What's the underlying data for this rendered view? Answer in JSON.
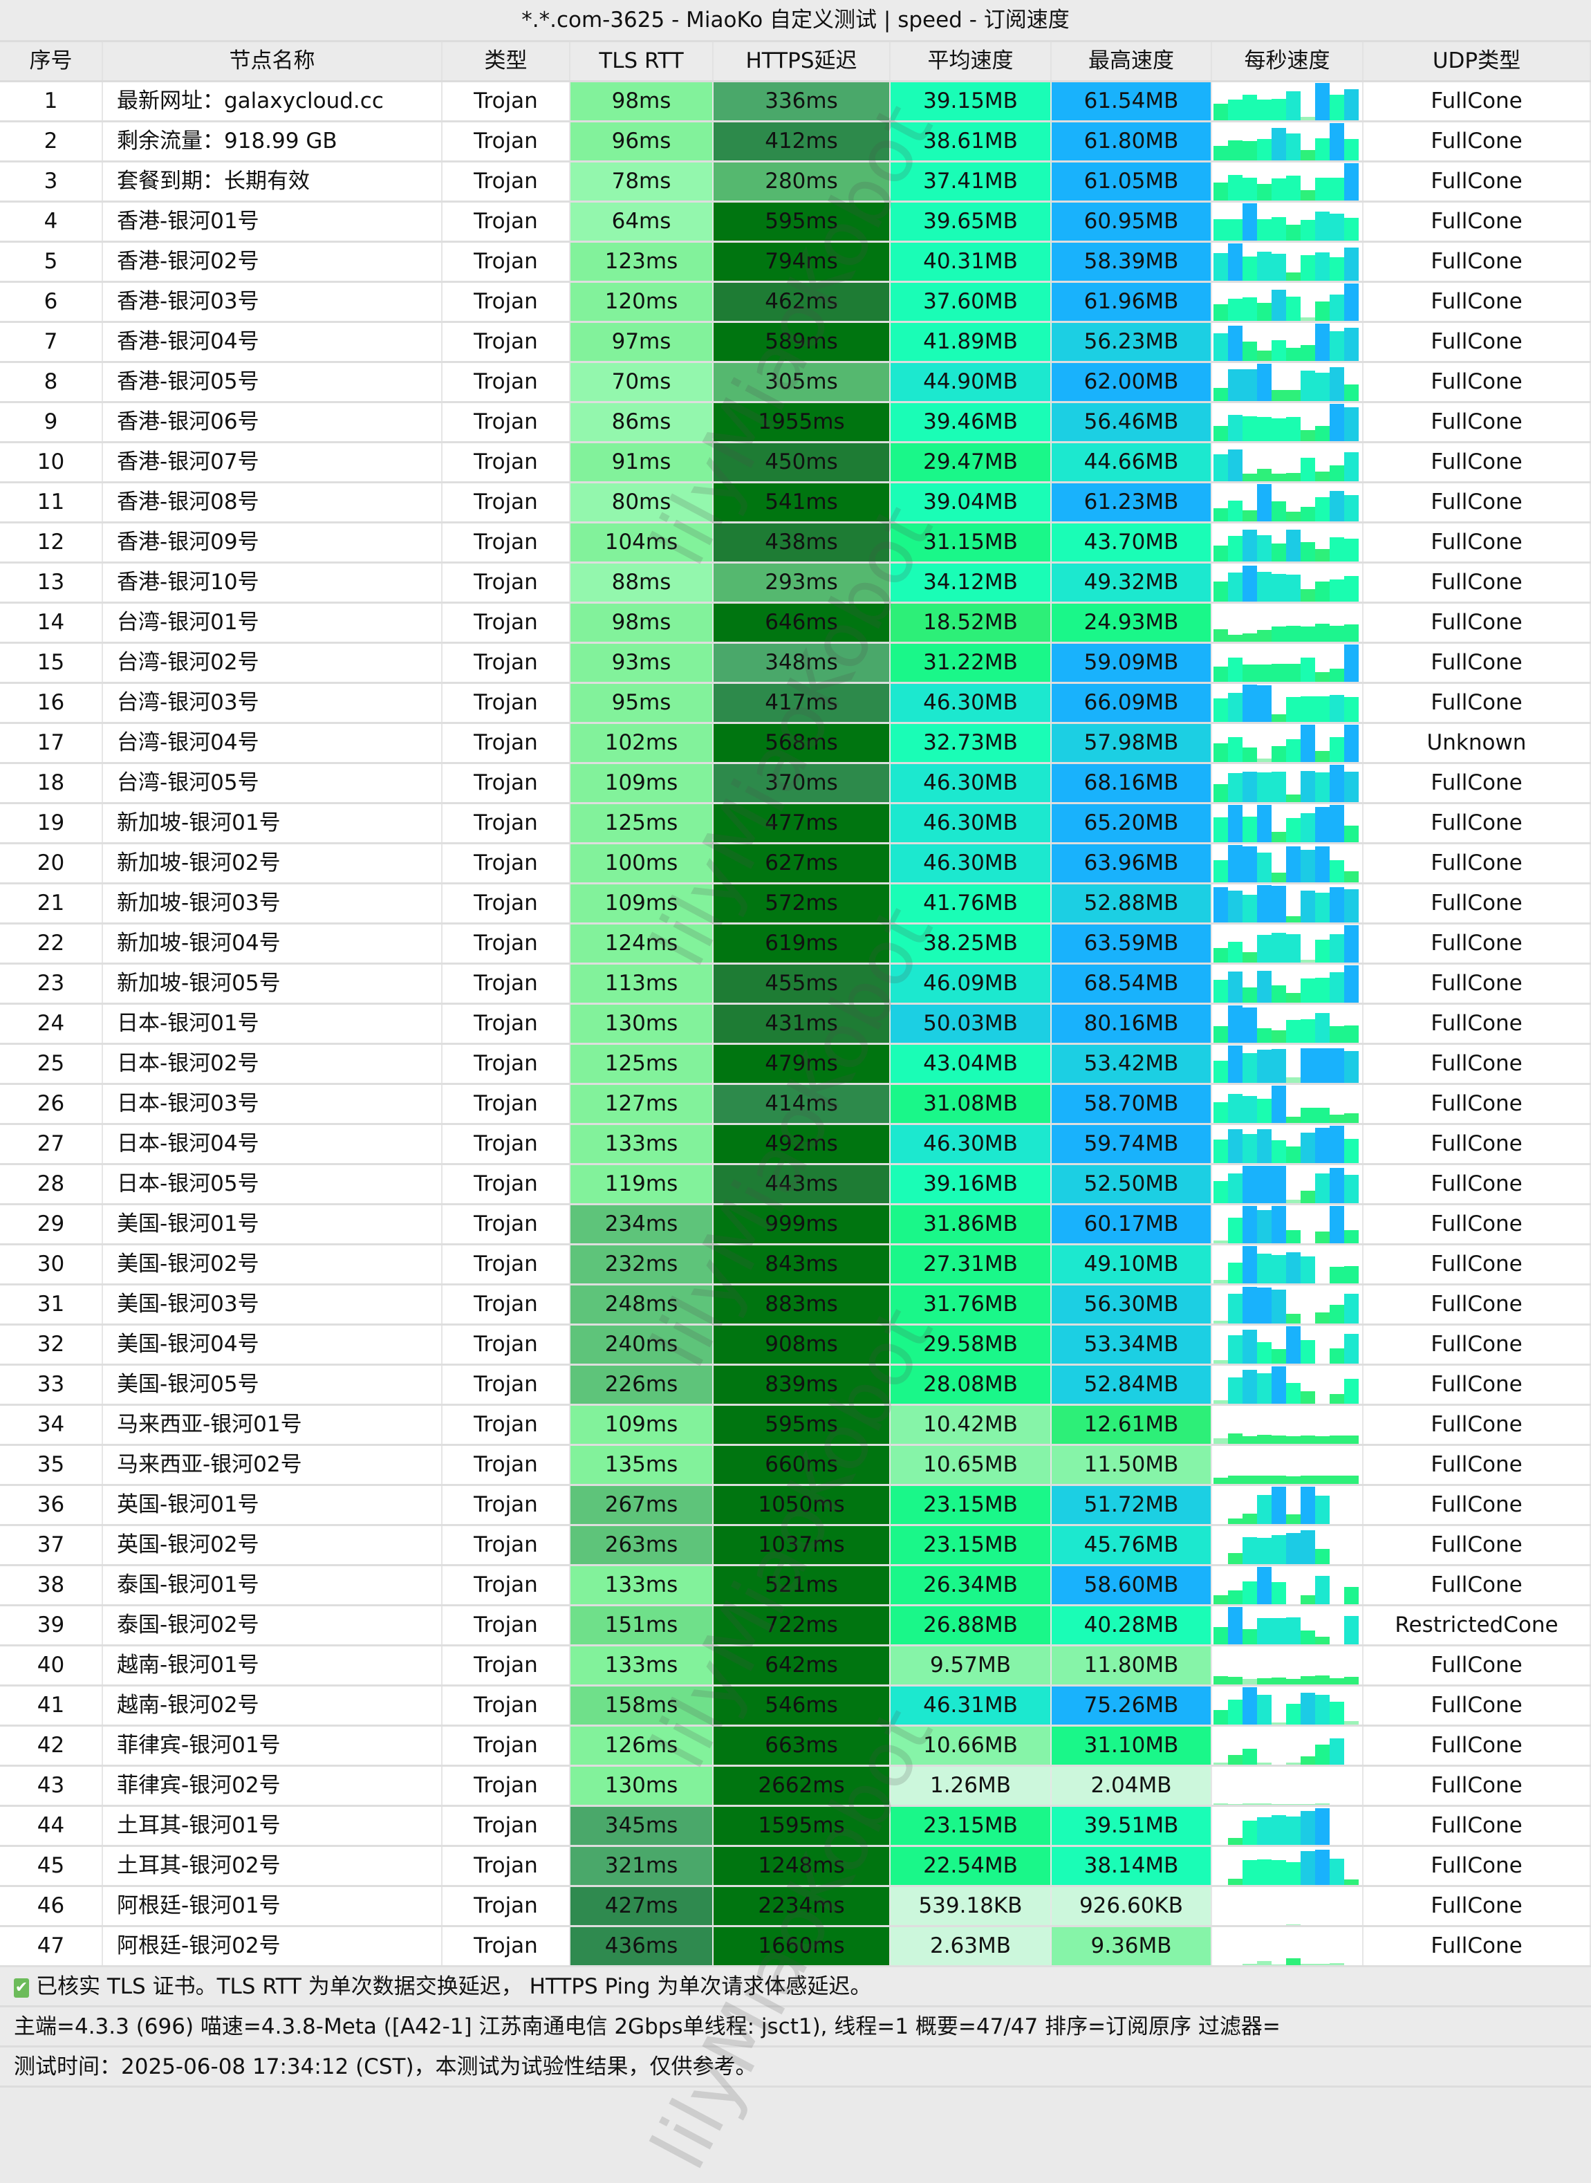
{
  "title": "*.*.com-3625 - MiaoKo 自定义测试 | speed - 订阅速度",
  "columns": [
    "序号",
    "节点名称",
    "类型",
    "TLS RTT",
    "HTTPS延迟",
    "平均速度",
    "最高速度",
    "每秒速度",
    "UDP类型"
  ],
  "rows": [
    {
      "idx": "1",
      "name": "最新网址：galaxycloud.cc",
      "type": "Trojan",
      "tls": "98ms",
      "https": "336ms",
      "avg": "39.15MB",
      "max": "61.54MB",
      "udp": "FullCone",
      "spark": [
        45,
        55,
        69,
        56,
        58,
        77,
        10,
        100,
        69,
        83
      ]
    },
    {
      "idx": "2",
      "name": "剩余流量：918.99 GB",
      "type": "Trojan",
      "tls": "96ms",
      "https": "412ms",
      "avg": "38.61MB",
      "max": "61.80MB",
      "udp": "FullCone",
      "spark": [
        38,
        54,
        51,
        58,
        87,
        73,
        27,
        60,
        100,
        58
      ]
    },
    {
      "idx": "3",
      "name": "套餐到期：长期有效",
      "type": "Trojan",
      "tls": "78ms",
      "https": "280ms",
      "avg": "37.41MB",
      "max": "61.05MB",
      "udp": "FullCone",
      "spark": [
        48,
        69,
        62,
        44,
        60,
        67,
        28,
        62,
        62,
        100
      ]
    },
    {
      "idx": "4",
      "name": "香港-银河01号",
      "type": "Trojan",
      "tls": "64ms",
      "https": "595ms",
      "avg": "39.65MB",
      "max": "60.95MB",
      "udp": "FullCone",
      "spark": [
        58,
        57,
        100,
        57,
        63,
        42,
        56,
        78,
        73,
        61
      ]
    },
    {
      "idx": "5",
      "name": "香港-银河02号",
      "type": "Trojan",
      "tls": "123ms",
      "https": "794ms",
      "avg": "40.31MB",
      "max": "58.39MB",
      "udp": "FullCone",
      "spark": [
        74,
        100,
        64,
        77,
        73,
        22,
        68,
        75,
        63,
        88
      ]
    },
    {
      "idx": "6",
      "name": "香港-银河03号",
      "type": "Trojan",
      "tls": "120ms",
      "https": "462ms",
      "avg": "37.60MB",
      "max": "61.96MB",
      "udp": "FullCone",
      "spark": [
        45,
        59,
        63,
        49,
        84,
        65,
        10,
        51,
        70,
        100
      ]
    },
    {
      "idx": "7",
      "name": "香港-银河04号",
      "type": "Trojan",
      "tls": "97ms",
      "https": "589ms",
      "avg": "41.89MB",
      "max": "56.23MB",
      "udp": "FullCone",
      "spark": [
        74,
        95,
        51,
        27,
        55,
        35,
        43,
        100,
        79,
        89
      ]
    },
    {
      "idx": "8",
      "name": "香港-银河05号",
      "type": "Trojan",
      "tls": "70ms",
      "https": "305ms",
      "avg": "44.90MB",
      "max": "62.00MB",
      "udp": "FullCone",
      "spark": [
        36,
        86,
        86,
        100,
        30,
        30,
        81,
        76,
        90,
        45
      ]
    },
    {
      "idx": "9",
      "name": "香港-银河06号",
      "type": "Trojan",
      "tls": "86ms",
      "https": "1955ms",
      "avg": "39.46MB",
      "max": "56.46MB",
      "udp": "FullCone",
      "spark": [
        40,
        71,
        66,
        65,
        62,
        65,
        30,
        41,
        100,
        91
      ]
    },
    {
      "idx": "10",
      "name": "香港-银河07号",
      "type": "Trojan",
      "tls": "91ms",
      "https": "450ms",
      "avg": "29.47MB",
      "max": "44.66MB",
      "udp": "FullCone",
      "spark": [
        73,
        86,
        20,
        34,
        20,
        22,
        63,
        26,
        42,
        78
      ]
    },
    {
      "idx": "11",
      "name": "香港-银河08号",
      "type": "Trojan",
      "tls": "80ms",
      "https": "541ms",
      "avg": "39.04MB",
      "max": "61.23MB",
      "udp": "FullCone",
      "spark": [
        36,
        56,
        30,
        100,
        53,
        26,
        38,
        64,
        82,
        71
      ]
    },
    {
      "idx": "12",
      "name": "香港-银河09号",
      "type": "Trojan",
      "tls": "104ms",
      "https": "438ms",
      "avg": "31.15MB",
      "max": "43.70MB",
      "udp": "FullCone",
      "spark": [
        43,
        68,
        86,
        71,
        48,
        86,
        51,
        34,
        64,
        61
      ]
    },
    {
      "idx": "13",
      "name": "香港-银河10号",
      "type": "Trojan",
      "tls": "88ms",
      "https": "293ms",
      "avg": "34.12MB",
      "max": "49.32MB",
      "udp": "FullCone",
      "spark": [
        53,
        78,
        97,
        79,
        74,
        73,
        34,
        53,
        59,
        69
      ]
    },
    {
      "idx": "14",
      "name": "台湾-银河01号",
      "type": "Trojan",
      "tls": "98ms",
      "https": "646ms",
      "avg": "18.52MB",
      "max": "24.93MB",
      "udp": "FullCone",
      "spark": [
        33,
        18,
        22,
        32,
        40,
        42,
        41,
        48,
        42,
        47
      ]
    },
    {
      "idx": "15",
      "name": "台湾-银河02号",
      "type": "Trojan",
      "tls": "93ms",
      "https": "348ms",
      "avg": "31.22MB",
      "max": "59.09MB",
      "udp": "FullCone",
      "spark": [
        40,
        65,
        47,
        47,
        48,
        49,
        65,
        25,
        35,
        100
      ]
    },
    {
      "idx": "16",
      "name": "台湾-银河03号",
      "type": "Trojan",
      "tls": "95ms",
      "https": "417ms",
      "avg": "46.30MB",
      "max": "66.09MB",
      "udp": "FullCone",
      "spark": [
        63,
        77,
        100,
        98,
        20,
        66,
        69,
        69,
        73,
        66
      ]
    },
    {
      "idx": "17",
      "name": "台湾-银河04号",
      "type": "Trojan",
      "tls": "102ms",
      "healthy": "",
      "https": "568ms",
      "avg": "32.73MB",
      "max": "57.98MB",
      "udp": "Unknown",
      "spark": [
        50,
        66,
        38,
        10,
        42,
        61,
        100,
        30,
        66,
        100
      ]
    },
    {
      "idx": "18",
      "name": "台湾-银河05号",
      "type": "Trojan",
      "tls": "109ms",
      "https": "370ms",
      "avg": "46.30MB",
      "max": "68.16MB",
      "udp": "FullCone",
      "spark": [
        49,
        78,
        82,
        80,
        81,
        20,
        84,
        79,
        100,
        82
      ]
    },
    {
      "idx": "19",
      "name": "新加坡-银河01号",
      "type": "Trojan",
      "tls": "125ms",
      "https": "477ms",
      "avg": "46.30MB",
      "max": "65.20MB",
      "udp": "FullCone",
      "spark": [
        67,
        100,
        68,
        100,
        27,
        65,
        78,
        95,
        100,
        45
      ]
    },
    {
      "idx": "20",
      "name": "新加坡-银河02号",
      "type": "Trojan",
      "tls": "100ms",
      "https": "627ms",
      "avg": "46.30MB",
      "max": "63.96MB",
      "udp": "FullCone",
      "spark": [
        60,
        100,
        96,
        79,
        26,
        96,
        87,
        96,
        60,
        30
      ]
    },
    {
      "idx": "21",
      "name": "新加坡-银河03号",
      "type": "Trojan",
      "tls": "109ms",
      "https": "572ms",
      "avg": "41.76MB",
      "max": "52.88MB",
      "udp": "FullCone",
      "spark": [
        95,
        86,
        74,
        100,
        98,
        16,
        85,
        79,
        95,
        89
      ]
    },
    {
      "idx": "22",
      "name": "新加坡-银河04号",
      "type": "Trojan",
      "tls": "124ms",
      "https": "619ms",
      "avg": "38.25MB",
      "max": "63.59MB",
      "udp": "FullCone",
      "spark": [
        38,
        56,
        27,
        74,
        79,
        75,
        7,
        61,
        75,
        100
      ]
    },
    {
      "idx": "23",
      "name": "新加坡-银河05号",
      "type": "Trojan",
      "tls": "113ms",
      "https": "455ms",
      "avg": "46.09MB",
      "max": "68.54MB",
      "udp": "FullCone",
      "spark": [
        61,
        84,
        41,
        86,
        46,
        26,
        64,
        67,
        81,
        100
      ]
    },
    {
      "idx": "24",
      "name": "日本-银河01号",
      "type": "Trojan",
      "tls": "130ms",
      "https": "431ms",
      "avg": "50.03MB",
      "max": "80.16MB",
      "udp": "FullCone",
      "spark": [
        45,
        100,
        95,
        38,
        33,
        61,
        63,
        79,
        44,
        46
      ]
    },
    {
      "idx": "25",
      "name": "日本-银河02号",
      "type": "Trojan",
      "tls": "125ms",
      "https": "479ms",
      "avg": "43.04MB",
      "max": "53.42MB",
      "udp": "FullCone",
      "spark": [
        59,
        100,
        80,
        89,
        90,
        14,
        92,
        92,
        92,
        86
      ]
    },
    {
      "idx": "26",
      "name": "日本-银河03号",
      "type": "Trojan",
      "tls": "127ms",
      "https": "414ms",
      "avg": "31.08MB",
      "max": "58.70MB",
      "udp": "FullCone",
      "spark": [
        55,
        77,
        72,
        65,
        100,
        17,
        41,
        41,
        23,
        25
      ]
    },
    {
      "idx": "27",
      "name": "日本-银河04号",
      "type": "Trojan",
      "tls": "133ms",
      "https": "492ms",
      "avg": "46.30MB",
      "max": "59.74MB",
      "udp": "FullCone",
      "spark": [
        63,
        90,
        78,
        90,
        62,
        44,
        82,
        95,
        100,
        64
      ]
    },
    {
      "idx": "28",
      "name": "日本-银河05号",
      "type": "Trojan",
      "tls": "119ms",
      "https": "443ms",
      "avg": "39.16MB",
      "max": "52.50MB",
      "udp": "FullCone",
      "spark": [
        60,
        79,
        100,
        100,
        100,
        10,
        34,
        79,
        95,
        76
      ]
    },
    {
      "idx": "29",
      "name": "美国-银河01号",
      "type": "Trojan",
      "tls": "234ms",
      "https": "999ms",
      "avg": "31.86MB",
      "max": "60.17MB",
      "udp": "FullCone",
      "spark": [
        8,
        68,
        100,
        88,
        100,
        36,
        0,
        32,
        100,
        35
      ]
    },
    {
      "idx": "30",
      "name": "美国-银河02号",
      "type": "Trojan",
      "tls": "232ms",
      "https": "843ms",
      "avg": "27.31MB",
      "max": "49.10MB",
      "udp": "FullCone",
      "spark": [
        10,
        56,
        100,
        80,
        75,
        84,
        73,
        0,
        45,
        46
      ]
    },
    {
      "idx": "31",
      "name": "美国-银河03号",
      "type": "Trojan",
      "tls": "248ms",
      "https": "883ms",
      "avg": "31.76MB",
      "max": "56.30MB",
      "udp": "FullCone",
      "spark": [
        8,
        80,
        98,
        96,
        90,
        25,
        0,
        30,
        50,
        80
      ]
    },
    {
      "idx": "32",
      "name": "美国-银河04号",
      "type": "Trojan",
      "tls": "240ms",
      "https": "908ms",
      "avg": "29.58MB",
      "max": "53.34MB",
      "udp": "FullCone",
      "spark": [
        10,
        75,
        90,
        58,
        38,
        100,
        63,
        0,
        40,
        80
      ]
    },
    {
      "idx": "33",
      "name": "美国-银河05号",
      "type": "Trojan",
      "tls": "226ms",
      "https": "839ms",
      "avg": "28.08MB",
      "max": "52.84MB",
      "udp": "FullCone",
      "spark": [
        10,
        70,
        90,
        81,
        100,
        55,
        33,
        0,
        26,
        67
      ]
    },
    {
      "idx": "34",
      "name": "马来西亚-银河01号",
      "type": "Trojan",
      "tls": "109ms",
      "https": "595ms",
      "avg": "10.42MB",
      "max": "12.61MB",
      "udp": "FullCone",
      "spark": [
        14,
        27,
        21,
        24,
        22,
        20,
        22,
        21,
        23,
        22
      ]
    },
    {
      "idx": "35",
      "name": "马来西亚-银河02号",
      "type": "Trojan",
      "tls": "135ms",
      "https": "660ms",
      "avg": "10.65MB",
      "max": "11.50MB",
      "udp": "FullCone",
      "spark": [
        16,
        22,
        22,
        22,
        22,
        21,
        22,
        22,
        22,
        22
      ]
    },
    {
      "idx": "36",
      "name": "英国-银河01号",
      "type": "Trojan",
      "tls": "267ms",
      "https": "1050ms",
      "avg": "23.15MB",
      "max": "51.72MB",
      "udp": "FullCone",
      "spark": [
        0,
        15,
        27,
        78,
        100,
        25,
        100,
        75,
        0,
        0
      ]
    },
    {
      "idx": "37",
      "name": "英国-银河02号",
      "type": "Trojan",
      "tls": "263ms",
      "https": "1037ms",
      "avg": "23.15MB",
      "max": "45.76MB",
      "udp": "FullCone",
      "spark": [
        0,
        30,
        73,
        71,
        77,
        83,
        90,
        40,
        0,
        0
      ]
    },
    {
      "idx": "38",
      "name": "泰国-银河01号",
      "type": "Trojan",
      "tls": "133ms",
      "https": "521ms",
      "avg": "26.34MB",
      "max": "58.60MB",
      "udp": "FullCone",
      "spark": [
        24,
        37,
        62,
        100,
        60,
        0,
        24,
        75,
        0,
        47
      ]
    },
    {
      "idx": "39",
      "name": "泰国-银河02号",
      "type": "Trojan",
      "tls": "151ms",
      "https": "722ms",
      "avg": "26.88MB",
      "max": "40.28MB",
      "udp": "RestrictedCone",
      "spark": [
        47,
        100,
        40,
        70,
        70,
        72,
        37,
        21,
        0,
        76
      ]
    },
    {
      "idx": "40",
      "name": "越南-银河01号",
      "type": "Trojan",
      "tls": "133ms",
      "https": "642ms",
      "avg": "9.57MB",
      "max": "11.80MB",
      "udp": "FullCone",
      "spark": [
        22,
        20,
        14,
        17,
        18,
        15,
        22,
        24,
        17,
        20
      ]
    },
    {
      "idx": "41",
      "name": "越南-银河02号",
      "type": "Trojan",
      "tls": "158ms",
      "https": "546ms",
      "avg": "46.31MB",
      "max": "75.26MB",
      "udp": "FullCone",
      "spark": [
        38,
        66,
        100,
        80,
        5,
        55,
        85,
        80,
        61,
        10
      ]
    },
    {
      "idx": "42",
      "name": "菲律宾-银河01号",
      "type": "Trojan",
      "tls": "126ms",
      "https": "663ms",
      "avg": "10.66MB",
      "max": "31.10MB",
      "udp": "FullCone",
      "spark": [
        6,
        26,
        42,
        5,
        0,
        5,
        22,
        54,
        70,
        0
      ]
    },
    {
      "idx": "43",
      "name": "菲律宾-银河02号",
      "type": "Trojan",
      "tls": "130ms",
      "https": "2662ms",
      "avg": "1.26MB",
      "max": "2.04MB",
      "udp": "FullCone",
      "spark": [
        3,
        2,
        3,
        3,
        2,
        2,
        2,
        3,
        0,
        0
      ]
    },
    {
      "idx": "44",
      "name": "土耳其-银河01号",
      "type": "Trojan",
      "tls": "345ms",
      "https": "1595ms",
      "avg": "23.15MB",
      "max": "39.51MB",
      "udp": "FullCone",
      "spark": [
        0,
        18,
        65,
        74,
        80,
        75,
        90,
        98,
        0,
        0
      ]
    },
    {
      "idx": "45",
      "name": "土耳其-银河02号",
      "type": "Trojan",
      "tls": "321ms",
      "https": "1248ms",
      "avg": "22.54MB",
      "max": "38.14MB",
      "udp": "FullCone",
      "spark": [
        0,
        17,
        66,
        68,
        66,
        61,
        90,
        95,
        70,
        15
      ]
    },
    {
      "idx": "46",
      "name": "阿根廷-银河01号",
      "type": "Trojan",
      "tls": "427ms",
      "https": "2234ms",
      "avg": "539.18KB",
      "max": "926.60KB",
      "udp": "FullCone",
      "spark": [
        0,
        0,
        0,
        0,
        0,
        2,
        0,
        0,
        0,
        0
      ]
    },
    {
      "idx": "47",
      "name": "阿根廷-银河02号",
      "type": "Trojan",
      "tls": "436ms",
      "https": "1660ms",
      "avg": "2.63MB",
      "max": "9.36MB",
      "udp": "FullCone",
      "spark": [
        0,
        0,
        3,
        12,
        2,
        18,
        4,
        3,
        5,
        0
      ]
    }
  ],
  "footer": {
    "line1": "已核实 TLS 证书。TLS RTT 为单次数据交换延迟， HTTPS Ping 为单次请求体感延迟。",
    "line2": "主端=4.3.3 (696) 喵速=4.3.8-Meta ([A42-1] 江苏南通电信 2Gbps单线程: jsct1), 线程=1 概要=47/47 排序=订阅原序 过滤器=",
    "line3": "测试时间：2025-06-08 17:34:12 (CST)，本测试为试验性结果，仅供参考。",
    "check_icon": "✔"
  },
  "watermark": "lilyMiaoKobot",
  "colors": {
    "tls_light": "#8ff5a6",
    "https_dark": "#007510",
    "avg_teal": "#1afdb6",
    "max_blue": "#19b2fc",
    "check_green": "#6cbb5a"
  }
}
